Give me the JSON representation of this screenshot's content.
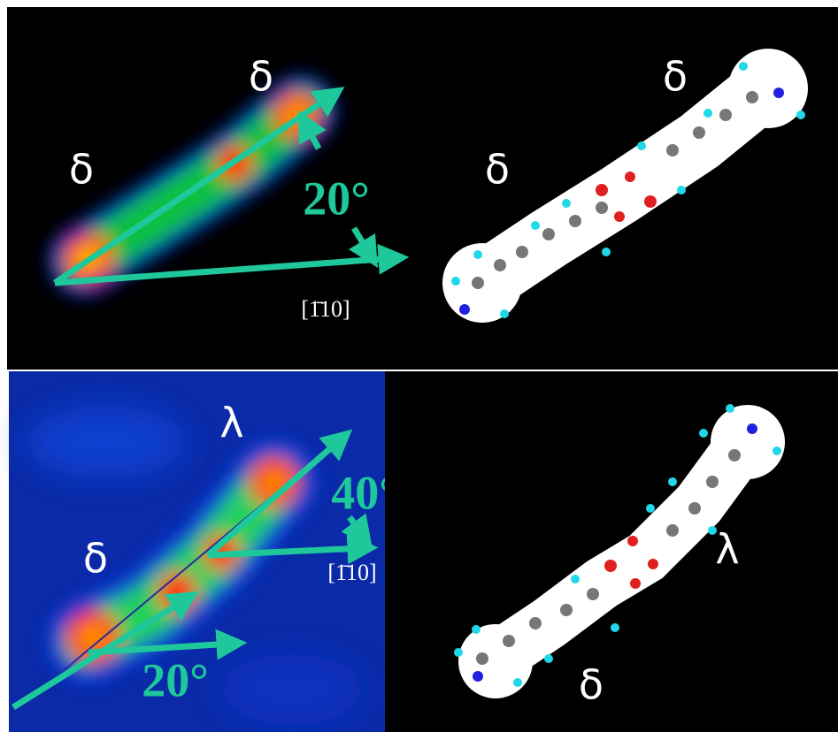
{
  "panels": [
    {
      "labels": [
        "δ",
        "δ",
        "20°",
        "[1̄10]"
      ]
    },
    {
      "labels": [
        "δ",
        "δ"
      ]
    },
    {
      "labels": [
        "λ",
        "δ",
        "40°",
        "[1̄10]",
        "20°"
      ]
    },
    {
      "labels": [
        "λ",
        "δ"
      ]
    }
  ]
}
